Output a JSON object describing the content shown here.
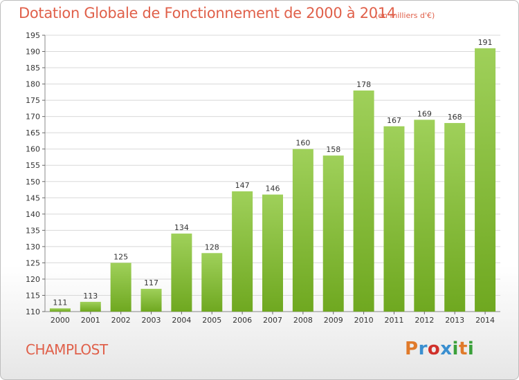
{
  "header": {
    "title": "Dotation Globale de Fonctionnement de 2000 à 2014",
    "unit": "(en milliers d'€)"
  },
  "footer": {
    "commune": "CHAMPLOST",
    "logo_text": "Proxiti",
    "logo_colors": [
      "#e07a2a",
      "#3a8fd0",
      "#d0302a",
      "#3a8fd0",
      "#3aa03a",
      "#e07a2a",
      "#3aa03a"
    ]
  },
  "chart_data": {
    "type": "bar",
    "categories": [
      "2000",
      "2001",
      "2002",
      "2003",
      "2004",
      "2005",
      "2006",
      "2007",
      "2008",
      "2009",
      "2010",
      "2011",
      "2012",
      "2013",
      "2014"
    ],
    "values": [
      111,
      113,
      125,
      117,
      134,
      128,
      147,
      146,
      160,
      158,
      178,
      167,
      169,
      168,
      191
    ],
    "data_labels": [
      "111",
      "113",
      "125",
      "117",
      "134",
      "128",
      "147",
      "146",
      "160",
      "158",
      "178",
      "167",
      "169",
      "168",
      "191"
    ],
    "title": "Dotation Globale de Fonctionnement de 2000 à 2014",
    "subtitle": "(en milliers d'€)",
    "ylim": [
      110,
      195
    ],
    "yticks": [
      110,
      115,
      120,
      125,
      130,
      135,
      140,
      145,
      150,
      155,
      160,
      165,
      170,
      175,
      180,
      185,
      190,
      195
    ],
    "ytick_labels": [
      "110",
      "115",
      "120",
      "125",
      "130",
      "135",
      "140",
      "145",
      "150",
      "155",
      "160",
      "165",
      "170",
      "175",
      "180",
      "185",
      "190",
      "195"
    ],
    "grid": true,
    "bar_color": "#8cc63f",
    "grid_color": "#d8d8d8"
  }
}
